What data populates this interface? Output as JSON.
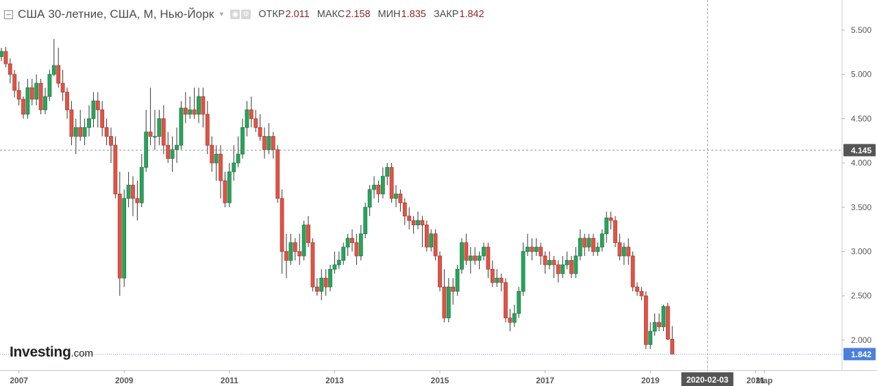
{
  "header": {
    "title": "США 30-летние, США, М, Нью-Йорк",
    "open_label": "ОТКР",
    "open_value": "2.011",
    "high_label": "МАКС",
    "high_value": "2.158",
    "low_label": "МИН",
    "low_value": "1.835",
    "close_label": "ЗАКР",
    "close_value": "1.842"
  },
  "logo": {
    "main": "Investing",
    "sub": ".com"
  },
  "colors": {
    "up": "#26a65b",
    "down": "#e05446",
    "up_border": "#1f7a45",
    "down_border": "#b13a2e",
    "price_tag_blue": "#4a7fe0",
    "price_tag_dark": "#555555",
    "date_tag": "#555555"
  },
  "chart_data": {
    "type": "candlestick",
    "interval": "monthly",
    "ylim": [
      1.6,
      5.85
    ],
    "y_ticks": [
      "2.000",
      "2.500",
      "3.000",
      "3.500",
      "4.000",
      "4.500",
      "5.000",
      "5.500"
    ],
    "x_start": "2006-09",
    "x_ticks": [
      {
        "label": "2007",
        "date": "2007-01"
      },
      {
        "label": "2009",
        "date": "2009-01"
      },
      {
        "label": "2011",
        "date": "2011-01"
      },
      {
        "label": "2013",
        "date": "2013-01"
      },
      {
        "label": "2015",
        "date": "2015-01"
      },
      {
        "label": "2017",
        "date": "2017-01"
      },
      {
        "label": "2019",
        "date": "2019-01"
      },
      {
        "label": "2021",
        "date": "2021-01"
      },
      {
        "label": "Мар",
        "date": "2021-03"
      }
    ],
    "crosshair": {
      "date_label": "2020-02-03",
      "date": "2020-02",
      "price_label": "4.145",
      "price": 4.145
    },
    "last_price_label": "1.842",
    "last_price": 1.842,
    "candles": [
      [
        5.2,
        5.26,
        5.3,
        5.15
      ],
      [
        5.26,
        5.12,
        5.31,
        5.08
      ],
      [
        5.12,
        5.0,
        5.18,
        4.9
      ],
      [
        5.0,
        4.82,
        5.05,
        4.74
      ],
      [
        4.82,
        4.72,
        4.92,
        4.65
      ],
      [
        4.72,
        4.55,
        4.75,
        4.5
      ],
      [
        4.55,
        4.85,
        4.95,
        4.5
      ],
      [
        4.85,
        4.72,
        4.95,
        4.65
      ],
      [
        4.72,
        4.9,
        5.0,
        4.65
      ],
      [
        4.9,
        4.6,
        4.95,
        4.55
      ],
      [
        4.6,
        4.75,
        4.85,
        4.55
      ],
      [
        4.75,
        5.0,
        5.05,
        4.7
      ],
      [
        5.0,
        5.1,
        5.4,
        4.98
      ],
      [
        5.1,
        4.9,
        5.3,
        4.85
      ],
      [
        4.9,
        4.8,
        5.05,
        4.7
      ],
      [
        4.8,
        4.6,
        4.85,
        4.5
      ],
      [
        4.6,
        4.3,
        4.7,
        4.2
      ],
      [
        4.3,
        4.4,
        4.5,
        4.1
      ],
      [
        4.4,
        4.3,
        4.6,
        4.25
      ],
      [
        4.3,
        4.4,
        4.5,
        4.2
      ],
      [
        4.4,
        4.5,
        4.65,
        4.3
      ],
      [
        4.5,
        4.7,
        4.8,
        4.4
      ],
      [
        4.7,
        4.6,
        4.8,
        4.4
      ],
      [
        4.6,
        4.4,
        4.7,
        4.3
      ],
      [
        4.4,
        4.3,
        4.5,
        4.2
      ],
      [
        4.3,
        4.2,
        4.4,
        4.0
      ],
      [
        4.2,
        3.65,
        4.3,
        3.6
      ],
      [
        3.65,
        2.7,
        3.9,
        2.5
      ],
      [
        2.7,
        3.6,
        3.7,
        2.6
      ],
      [
        3.6,
        3.75,
        3.9,
        3.5
      ],
      [
        3.75,
        3.6,
        3.85,
        3.4
      ],
      [
        3.6,
        3.55,
        3.8,
        3.35
      ],
      [
        3.55,
        3.95,
        4.1,
        3.5
      ],
      [
        3.95,
        4.35,
        4.6,
        3.9
      ],
      [
        4.35,
        4.3,
        4.85,
        4.2
      ],
      [
        4.3,
        4.3,
        4.6,
        4.15
      ],
      [
        4.3,
        4.5,
        4.6,
        4.2
      ],
      [
        4.5,
        4.2,
        4.65,
        4.1
      ],
      [
        4.2,
        4.05,
        4.35,
        4.0
      ],
      [
        4.05,
        4.15,
        4.3,
        3.9
      ],
      [
        4.15,
        4.2,
        4.4,
        4.0
      ],
      [
        4.2,
        4.62,
        4.7,
        4.15
      ],
      [
        4.62,
        4.55,
        4.8,
        4.45
      ],
      [
        4.55,
        4.6,
        4.75,
        4.5
      ],
      [
        4.6,
        4.55,
        4.85,
        4.5
      ],
      [
        4.55,
        4.75,
        4.85,
        4.45
      ],
      [
        4.75,
        4.55,
        4.85,
        4.4
      ],
      [
        4.55,
        4.2,
        4.7,
        4.1
      ],
      [
        4.2,
        4.0,
        4.3,
        3.9
      ],
      [
        4.0,
        4.1,
        4.2,
        3.8
      ],
      [
        4.1,
        3.8,
        4.2,
        3.6
      ],
      [
        3.8,
        3.55,
        3.9,
        3.5
      ],
      [
        3.55,
        3.9,
        4.0,
        3.5
      ],
      [
        3.9,
        4.0,
        4.2,
        3.8
      ],
      [
        4.0,
        4.1,
        4.3,
        3.95
      ],
      [
        4.1,
        4.4,
        4.5,
        4.05
      ],
      [
        4.4,
        4.6,
        4.7,
        4.3
      ],
      [
        4.6,
        4.5,
        4.75,
        4.4
      ],
      [
        4.5,
        4.4,
        4.6,
        4.35
      ],
      [
        4.4,
        4.3,
        4.55,
        4.25
      ],
      [
        4.3,
        4.15,
        4.4,
        4.05
      ],
      [
        4.15,
        4.3,
        4.45,
        4.1
      ],
      [
        4.3,
        4.15,
        4.35,
        4.05
      ],
      [
        4.15,
        3.6,
        4.2,
        3.55
      ],
      [
        3.6,
        3.0,
        3.7,
        2.75
      ],
      [
        3.0,
        2.9,
        3.2,
        2.7
      ],
      [
        2.9,
        3.1,
        3.2,
        2.85
      ],
      [
        3.1,
        3.0,
        3.15,
        2.9
      ],
      [
        3.0,
        2.95,
        3.2,
        2.85
      ],
      [
        2.95,
        3.3,
        3.35,
        2.9
      ],
      [
        3.3,
        3.1,
        3.4,
        3.05
      ],
      [
        3.1,
        2.6,
        3.15,
        2.55
      ],
      [
        2.6,
        2.55,
        2.7,
        2.5
      ],
      [
        2.55,
        2.7,
        2.8,
        2.45
      ],
      [
        2.7,
        2.6,
        2.8,
        2.5
      ],
      [
        2.6,
        2.8,
        2.85,
        2.55
      ],
      [
        2.8,
        2.85,
        3.0,
        2.75
      ],
      [
        2.85,
        2.9,
        3.0,
        2.8
      ],
      [
        2.9,
        3.05,
        3.1,
        2.85
      ],
      [
        3.05,
        3.15,
        3.2,
        2.95
      ],
      [
        3.15,
        3.1,
        3.25,
        3.0
      ],
      [
        3.1,
        2.95,
        3.2,
        2.85
      ],
      [
        2.95,
        3.2,
        3.3,
        2.9
      ],
      [
        3.2,
        3.5,
        3.55,
        3.15
      ],
      [
        3.5,
        3.7,
        3.75,
        3.4
      ],
      [
        3.7,
        3.75,
        3.85,
        3.6
      ],
      [
        3.75,
        3.65,
        3.8,
        3.55
      ],
      [
        3.65,
        3.85,
        3.95,
        3.6
      ],
      [
        3.85,
        3.95,
        4.0,
        3.75
      ],
      [
        3.95,
        3.6,
        4.0,
        3.55
      ],
      [
        3.6,
        3.65,
        3.75,
        3.5
      ],
      [
        3.65,
        3.55,
        3.7,
        3.45
      ],
      [
        3.55,
        3.4,
        3.6,
        3.3
      ],
      [
        3.4,
        3.35,
        3.5,
        3.25
      ],
      [
        3.35,
        3.3,
        3.4,
        3.2
      ],
      [
        3.3,
        3.35,
        3.45,
        3.25
      ],
      [
        3.35,
        3.3,
        3.4,
        3.05
      ],
      [
        3.3,
        3.05,
        3.35,
        3.0
      ],
      [
        3.05,
        3.2,
        3.25,
        3.0
      ],
      [
        3.2,
        2.95,
        3.25,
        2.9
      ],
      [
        2.95,
        2.6,
        3.0,
        2.55
      ],
      [
        2.6,
        2.25,
        2.8,
        2.2
      ],
      [
        2.25,
        2.6,
        2.7,
        2.2
      ],
      [
        2.6,
        2.55,
        2.7,
        2.4
      ],
      [
        2.55,
        2.8,
        2.85,
        2.5
      ],
      [
        2.8,
        3.1,
        3.15,
        2.75
      ],
      [
        3.1,
        2.9,
        3.2,
        2.85
      ],
      [
        2.9,
        2.95,
        3.05,
        2.75
      ],
      [
        2.95,
        2.9,
        3.05,
        2.85
      ],
      [
        2.9,
        2.95,
        3.0,
        2.8
      ],
      [
        2.95,
        3.05,
        3.1,
        2.9
      ],
      [
        3.05,
        2.8,
        3.1,
        2.7
      ],
      [
        2.8,
        2.65,
        2.9,
        2.6
      ],
      [
        2.65,
        2.7,
        2.8,
        2.6
      ],
      [
        2.7,
        2.65,
        2.75,
        2.55
      ],
      [
        2.65,
        2.25,
        2.7,
        2.2
      ],
      [
        2.25,
        2.2,
        2.35,
        2.1
      ],
      [
        2.2,
        2.3,
        2.4,
        2.15
      ],
      [
        2.3,
        2.55,
        2.6,
        2.25
      ],
      [
        2.55,
        3.0,
        3.1,
        2.5
      ],
      [
        3.0,
        3.05,
        3.2,
        2.95
      ],
      [
        3.05,
        3.0,
        3.15,
        2.9
      ],
      [
        3.0,
        3.05,
        3.15,
        2.95
      ],
      [
        3.05,
        2.95,
        3.1,
        2.85
      ],
      [
        2.95,
        2.85,
        3.0,
        2.75
      ],
      [
        2.85,
        2.9,
        3.0,
        2.8
      ],
      [
        2.9,
        2.85,
        2.95,
        2.7
      ],
      [
        2.85,
        2.75,
        2.9,
        2.65
      ],
      [
        2.75,
        2.85,
        2.95,
        2.7
      ],
      [
        2.85,
        2.9,
        3.0,
        2.8
      ],
      [
        2.9,
        2.75,
        2.95,
        2.7
      ],
      [
        2.75,
        2.95,
        3.05,
        2.7
      ],
      [
        2.95,
        3.15,
        3.25,
        2.9
      ],
      [
        3.15,
        3.05,
        3.2,
        2.95
      ],
      [
        3.05,
        3.15,
        3.2,
        3.0
      ],
      [
        3.15,
        3.0,
        3.2,
        2.95
      ],
      [
        3.0,
        3.05,
        3.1,
        2.95
      ],
      [
        3.05,
        3.2,
        3.25,
        3.0
      ],
      [
        3.2,
        3.38,
        3.45,
        3.1
      ],
      [
        3.38,
        3.35,
        3.45,
        3.25
      ],
      [
        3.35,
        3.1,
        3.4,
        3.05
      ],
      [
        3.1,
        2.95,
        3.2,
        2.9
      ],
      [
        2.95,
        3.05,
        3.1,
        2.85
      ],
      [
        3.05,
        2.95,
        3.15,
        2.85
      ],
      [
        2.95,
        2.6,
        3.0,
        2.55
      ],
      [
        2.6,
        2.55,
        2.65,
        2.5
      ],
      [
        2.55,
        2.5,
        2.6,
        2.45
      ],
      [
        2.5,
        1.95,
        2.55,
        1.9
      ],
      [
        1.95,
        2.1,
        2.2,
        1.9
      ],
      [
        2.1,
        2.2,
        2.3,
        2.05
      ],
      [
        2.2,
        2.15,
        2.3,
        2.1
      ],
      [
        2.15,
        2.38,
        2.4,
        2.1
      ],
      [
        2.38,
        2.01,
        2.42,
        2.0
      ],
      [
        2.01,
        1.842,
        2.158,
        1.835
      ]
    ]
  }
}
